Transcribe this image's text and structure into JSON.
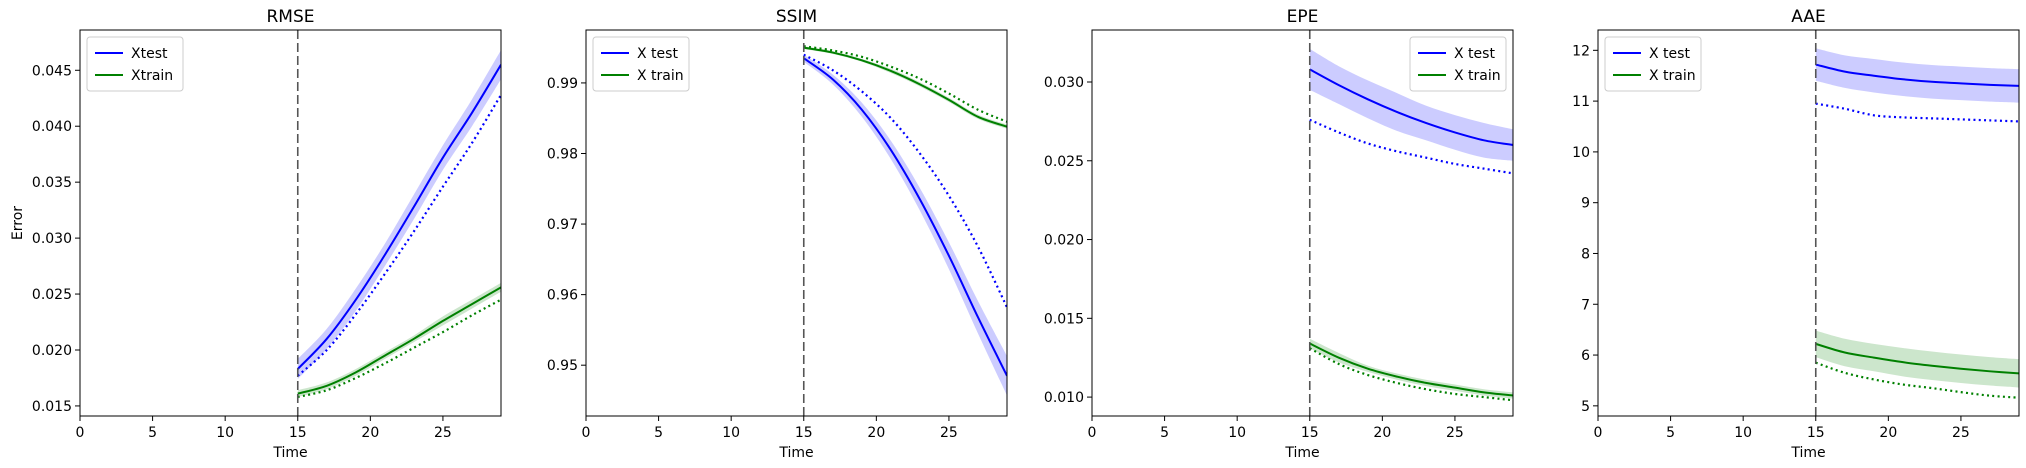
{
  "chart_data": [
    {
      "type": "line",
      "title": "RMSE",
      "xlabel": "Time",
      "ylabel": "Error",
      "xlim": [
        0,
        29
      ],
      "ylim": [
        0.0141,
        0.0486
      ],
      "xticks": [
        0,
        5,
        10,
        15,
        20,
        25
      ],
      "yticks": [
        0.015,
        0.02,
        0.025,
        0.03,
        0.035,
        0.04,
        0.045
      ],
      "ytick_labels": [
        "0.015",
        "0.020",
        "0.025",
        "0.030",
        "0.035",
        "0.040",
        "0.045"
      ],
      "vline_x": 15,
      "legend": {
        "placement": "upper left",
        "entries": [
          "Xtest",
          "Xtrain"
        ]
      },
      "x": [
        15,
        17,
        19,
        21,
        23,
        25,
        27,
        29
      ],
      "series": [
        {
          "name": "Xtest",
          "color": "#0000ff",
          "style": "solid",
          "values": [
            0.0183,
            0.021,
            0.0245,
            0.0285,
            0.0328,
            0.0372,
            0.0412,
            0.0455
          ],
          "band": [
            0.0009,
            0.0009,
            0.001,
            0.001,
            0.0011,
            0.0011,
            0.0012,
            0.0013
          ]
        },
        {
          "name": "",
          "color": "#0000ff",
          "style": "dotted",
          "values": [
            0.0177,
            0.02,
            0.0232,
            0.0268,
            0.0306,
            0.0346,
            0.0385,
            0.0428
          ]
        },
        {
          "name": "Xtrain",
          "color": "#008000",
          "style": "solid",
          "values": [
            0.0161,
            0.0168,
            0.018,
            0.0195,
            0.021,
            0.0226,
            0.0241,
            0.0256
          ],
          "band": [
            0.0003,
            0.0003,
            0.0003,
            0.0003,
            0.0003,
            0.0004,
            0.0004,
            0.0004
          ]
        },
        {
          "name": "",
          "color": "#008000",
          "style": "dotted",
          "values": [
            0.0158,
            0.0164,
            0.0175,
            0.0188,
            0.0202,
            0.0216,
            0.0231,
            0.0245
          ]
        }
      ]
    },
    {
      "type": "line",
      "title": "SSIM",
      "xlabel": "Time",
      "ylabel": "",
      "xlim": [
        0,
        29
      ],
      "ylim": [
        0.9428,
        0.9975
      ],
      "xticks": [
        0,
        5,
        10,
        15,
        20,
        25
      ],
      "yticks": [
        0.95,
        0.96,
        0.97,
        0.98,
        0.99
      ],
      "ytick_labels": [
        "0.95",
        "0.96",
        "0.97",
        "0.98",
        "0.99"
      ],
      "vline_x": 15,
      "legend": {
        "placement": "upper left",
        "entries": [
          "X test",
          "X train"
        ]
      },
      "x": [
        15,
        17,
        19,
        21,
        23,
        25,
        27,
        29
      ],
      "series": [
        {
          "name": "X test",
          "color": "#0000ff",
          "style": "solid",
          "values": [
            0.9935,
            0.9905,
            0.9862,
            0.9805,
            0.9735,
            0.9655,
            0.9568,
            0.9485
          ],
          "band": [
            0.0005,
            0.0007,
            0.001,
            0.0013,
            0.0016,
            0.0019,
            0.0023,
            0.0028
          ]
        },
        {
          "name": "",
          "color": "#0000ff",
          "style": "dotted",
          "values": [
            0.994,
            0.9918,
            0.9888,
            0.985,
            0.98,
            0.974,
            0.9668,
            0.9582
          ]
        },
        {
          "name": "X train",
          "color": "#008000",
          "style": "solid",
          "values": [
            0.995,
            0.9943,
            0.9932,
            0.9917,
            0.9898,
            0.9876,
            0.9852,
            0.9838
          ],
          "band": [
            0.0002,
            0.0002,
            0.0002,
            0.0003,
            0.0003,
            0.0003,
            0.0003,
            0.0003
          ]
        },
        {
          "name": "",
          "color": "#008000",
          "style": "dotted",
          "values": [
            0.9952,
            0.9946,
            0.9937,
            0.9923,
            0.9906,
            0.9885,
            0.9862,
            0.9845
          ]
        }
      ]
    },
    {
      "type": "line",
      "title": "EPE",
      "xlabel": "Time",
      "ylabel": "",
      "xlim": [
        0,
        29
      ],
      "ylim": [
        0.0088,
        0.0333
      ],
      "xticks": [
        0,
        5,
        10,
        15,
        20,
        25
      ],
      "yticks": [
        0.01,
        0.015,
        0.02,
        0.025,
        0.03
      ],
      "ytick_labels": [
        "0.010",
        "0.015",
        "0.020",
        "0.025",
        "0.030"
      ],
      "vline_x": 15,
      "legend": {
        "placement": "upper right",
        "entries": [
          "X test",
          "X train"
        ]
      },
      "x": [
        15,
        17,
        19,
        21,
        23,
        25,
        27,
        29
      ],
      "series": [
        {
          "name": "X test",
          "color": "#0000ff",
          "style": "solid",
          "values": [
            0.0308,
            0.0298,
            0.0289,
            0.0281,
            0.0274,
            0.0268,
            0.0263,
            0.026
          ],
          "band": [
            0.0013,
            0.0012,
            0.0012,
            0.0012,
            0.0011,
            0.0011,
            0.0011,
            0.001
          ]
        },
        {
          "name": "",
          "color": "#0000ff",
          "style": "dotted",
          "values": [
            0.0276,
            0.0268,
            0.0261,
            0.0256,
            0.0252,
            0.0248,
            0.0245,
            0.0242
          ]
        },
        {
          "name": "X train",
          "color": "#008000",
          "style": "solid",
          "values": [
            0.0134,
            0.0125,
            0.0118,
            0.0113,
            0.0109,
            0.0106,
            0.0103,
            0.0101
          ],
          "band": [
            0.0003,
            0.0003,
            0.0002,
            0.0002,
            0.0002,
            0.0002,
            0.0002,
            0.0002
          ]
        },
        {
          "name": "",
          "color": "#008000",
          "style": "dotted",
          "values": [
            0.0131,
            0.0121,
            0.0114,
            0.0109,
            0.0105,
            0.0102,
            0.01,
            0.0098
          ]
        }
      ]
    },
    {
      "type": "line",
      "title": "AAE",
      "xlabel": "Time",
      "ylabel": "",
      "xlim": [
        0,
        29
      ],
      "ylim": [
        4.8,
        12.4
      ],
      "xticks": [
        0,
        5,
        10,
        15,
        20,
        25
      ],
      "yticks": [
        5,
        6,
        7,
        8,
        9,
        10,
        11,
        12
      ],
      "ytick_labels": [
        "5",
        "6",
        "7",
        "8",
        "9",
        "10",
        "11",
        "12"
      ],
      "vline_x": 15,
      "legend": {
        "placement": "upper left",
        "entries": [
          "X test",
          "X train"
        ]
      },
      "x": [
        15,
        17,
        19,
        21,
        23,
        25,
        27,
        29
      ],
      "series": [
        {
          "name": "X test",
          "color": "#0000ff",
          "style": "solid",
          "values": [
            11.72,
            11.58,
            11.5,
            11.43,
            11.38,
            11.35,
            11.32,
            11.3
          ],
          "band": [
            0.32,
            0.32,
            0.33,
            0.33,
            0.33,
            0.33,
            0.33,
            0.33
          ]
        },
        {
          "name": "",
          "color": "#0000ff",
          "style": "dotted",
          "values": [
            10.95,
            10.85,
            10.72,
            10.68,
            10.66,
            10.64,
            10.62,
            10.6
          ]
        },
        {
          "name": "X train",
          "color": "#008000",
          "style": "solid",
          "values": [
            6.22,
            6.05,
            5.95,
            5.86,
            5.79,
            5.73,
            5.68,
            5.64
          ],
          "band": [
            0.26,
            0.27,
            0.27,
            0.28,
            0.28,
            0.28,
            0.28,
            0.28
          ]
        },
        {
          "name": "",
          "color": "#008000",
          "style": "dotted",
          "values": [
            5.85,
            5.65,
            5.52,
            5.42,
            5.35,
            5.27,
            5.2,
            5.16
          ]
        }
      ]
    }
  ]
}
